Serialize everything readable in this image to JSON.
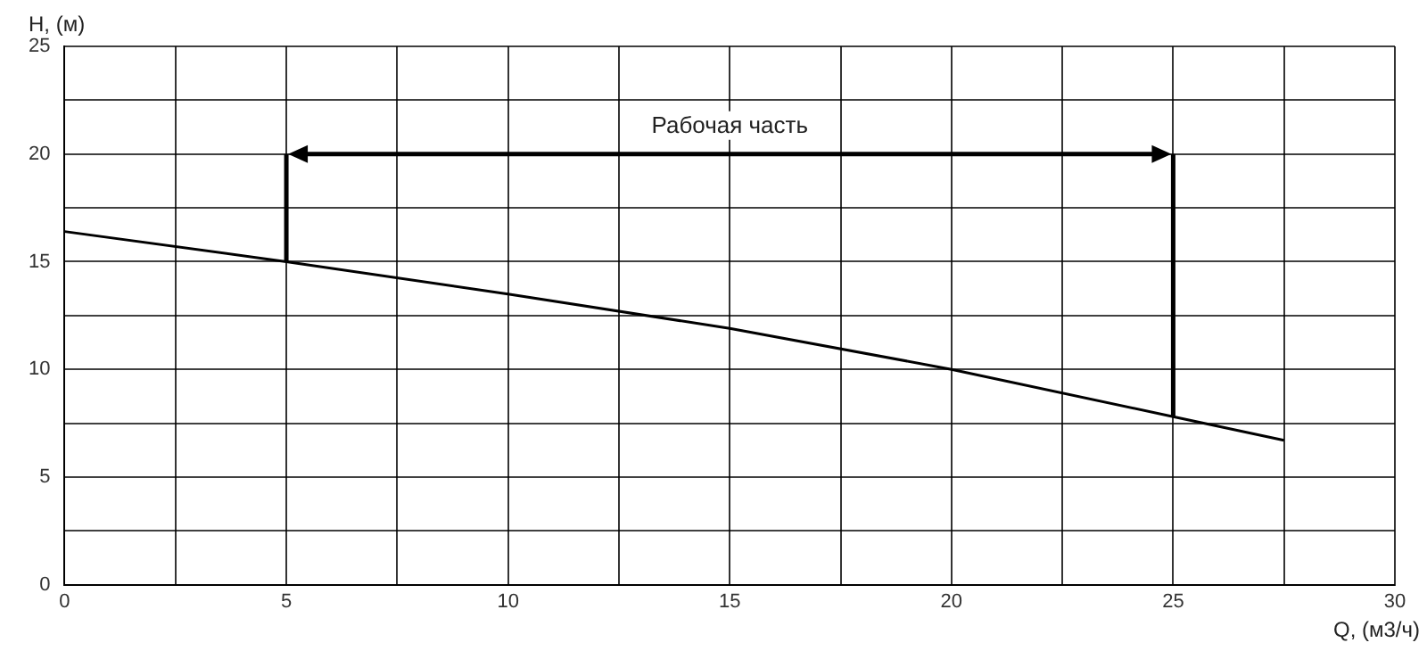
{
  "chart_data": {
    "type": "line",
    "xlabel": "Q, (м3/ч)",
    "ylabel": "H, (м)",
    "series": [
      {
        "color": "#000000",
        "x": [
          0,
          5,
          10,
          15,
          20,
          25,
          27.5
        ],
        "values": [
          16.4,
          15,
          13.5,
          11.9,
          10,
          7.8,
          6.7
        ]
      },
      {
        "color": "#000000",
        "x": [
          5,
          5
        ],
        "values": [
          15,
          20
        ]
      },
      {
        "color": "#000000",
        "x": [
          25,
          25
        ],
        "values": [
          7.8,
          20
        ]
      }
    ],
    "xlim": [
      0,
      30
    ],
    "ylim": [
      0,
      25
    ],
    "xticks": [
      0,
      {
        "value": 2.5,
        "label": null
      },
      5,
      {
        "value": 7.5,
        "label": null
      },
      10,
      {
        "value": 12.5,
        "label": null
      },
      15,
      {
        "value": 17.5,
        "label": null
      },
      20,
      {
        "value": 22.5,
        "label": null
      },
      25,
      {
        "value": 27.5,
        "label": null
      },
      30
    ],
    "yticks": [
      0,
      {
        "value": 2.5,
        "label": null
      },
      5,
      {
        "value": 7.5,
        "label": null
      },
      10,
      {
        "value": 12.5,
        "label": null
      },
      15,
      {
        "value": 17.5,
        "label": null
      },
      20,
      {
        "value": 22.5,
        "label": null
      },
      25
    ],
    "annotations": [
      "Рабочая часть"
    ],
    "grid": true,
    "legend": false,
    "marker": "none",
    "line_style": "solid"
  }
}
